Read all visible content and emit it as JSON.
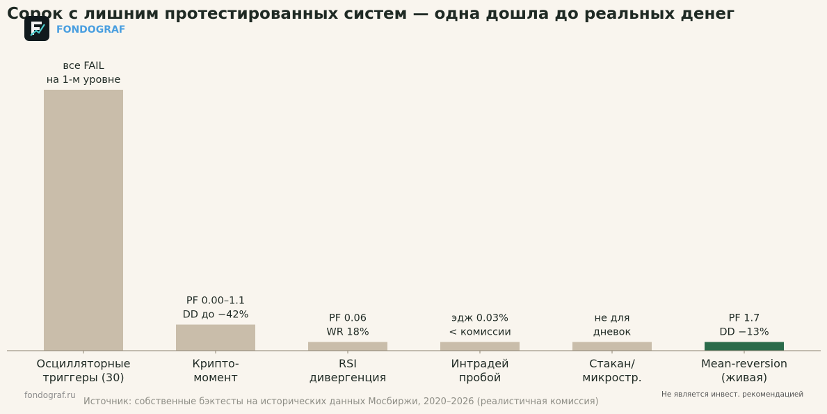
{
  "header": {
    "title": "Сорок с лишним протестированных систем — одна дошла до реальных денег",
    "brand": "FONDOGRAF"
  },
  "footer": {
    "site": "fondograf.ru",
    "source": "Источник: собственные бэктесты на исторических данных Мосбиржи, 2020–2026 (реалистичная комиссия)",
    "disclaimer": "Не является инвест. рекомендацией"
  },
  "colors": {
    "bar": "#c9bdaa",
    "highlight": "#2a6b4a",
    "axis": "#8a8170",
    "text": "#1f2a24"
  },
  "chart_data": {
    "type": "bar",
    "categories": [
      [
        "Осцилляторные",
        "триггеры (30)"
      ],
      [
        "Крипто-",
        "момент"
      ],
      [
        "RSI",
        "дивергенция"
      ],
      [
        "Интрадей",
        "пробой"
      ],
      [
        "Стакан/",
        "микростр."
      ],
      [
        "Mean-reversion",
        "(живая)"
      ]
    ],
    "values": [
      30,
      3,
      1,
      1,
      1,
      1
    ],
    "annotations": [
      [
        "все FAIL",
        "на 1-м уровне"
      ],
      [
        "PF 0.00–1.1",
        "DD до −42%"
      ],
      [
        "PF 0.06",
        "WR 18%"
      ],
      [
        "эдж 0.03%",
        "< комиссии"
      ],
      [
        "не для",
        "дневок"
      ],
      [
        "PF 1.7",
        "DD −13%"
      ]
    ],
    "highlight_index": 5,
    "ylim": [
      0,
      30
    ],
    "grid": false,
    "y_axis_visible": false
  }
}
